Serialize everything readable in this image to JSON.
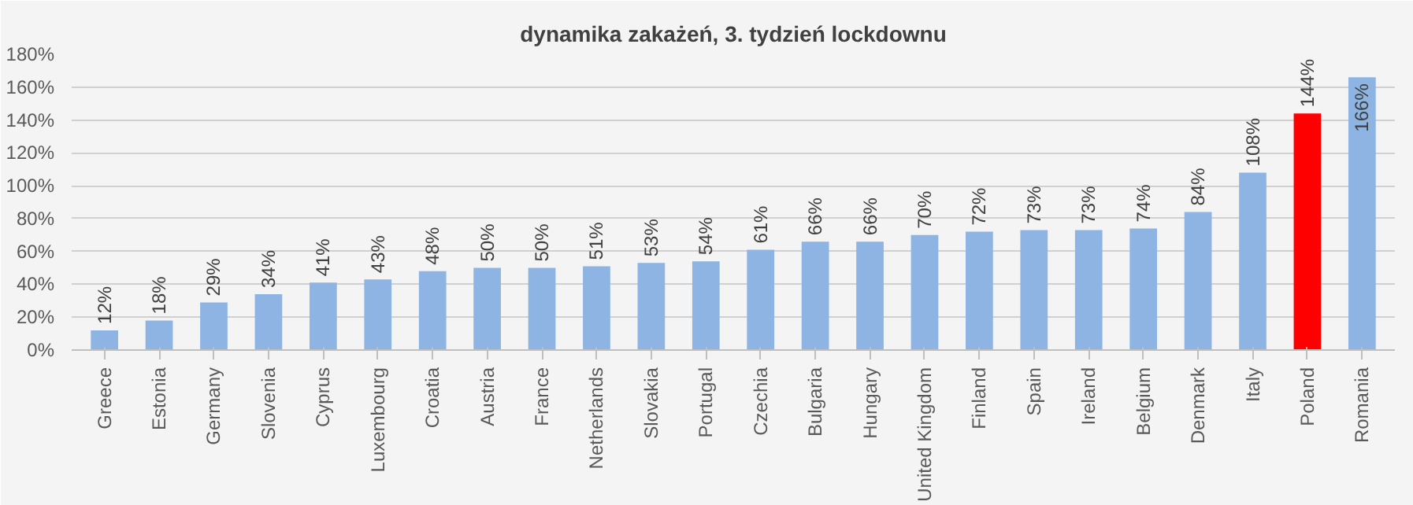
{
  "chart_data": {
    "type": "bar",
    "title": "dynamika zakażeń, 3. tydzień lockdownu",
    "categories": [
      "Greece",
      "Estonia",
      "Germany",
      "Slovenia",
      "Cyprus",
      "Luxembourg",
      "Croatia",
      "Austria",
      "France",
      "Netherlands",
      "Slovakia",
      "Portugal",
      "Czechia",
      "Bulgaria",
      "Hungary",
      "United Kingdom",
      "Finland",
      "Spain",
      "Ireland",
      "Belgium",
      "Denmark",
      "Italy",
      "Poland",
      "Romania"
    ],
    "values": [
      12,
      18,
      29,
      34,
      41,
      43,
      48,
      50,
      50,
      51,
      53,
      54,
      61,
      66,
      66,
      70,
      72,
      73,
      73,
      74,
      84,
      108,
      144,
      166
    ],
    "value_labels": [
      "12%",
      "18%",
      "29%",
      "34%",
      "41%",
      "43%",
      "48%",
      "50%",
      "50%",
      "51%",
      "53%",
      "54%",
      "61%",
      "66%",
      "66%",
      "70%",
      "72%",
      "73%",
      "73%",
      "74%",
      "84%",
      "108%",
      "144%",
      "166%"
    ],
    "colors": [
      "#8db4e2",
      "#8db4e2",
      "#8db4e2",
      "#8db4e2",
      "#8db4e2",
      "#8db4e2",
      "#8db4e2",
      "#8db4e2",
      "#8db4e2",
      "#8db4e2",
      "#8db4e2",
      "#8db4e2",
      "#8db4e2",
      "#8db4e2",
      "#8db4e2",
      "#8db4e2",
      "#8db4e2",
      "#8db4e2",
      "#8db4e2",
      "#8db4e2",
      "#8db4e2",
      "#8db4e2",
      "#ff0000",
      "#8db4e2"
    ],
    "ylim": [
      0,
      180
    ],
    "yticks": [
      {
        "value": 0,
        "label": "0%"
      },
      {
        "value": 20,
        "label": "20%"
      },
      {
        "value": 40,
        "label": "40%"
      },
      {
        "value": 60,
        "label": "60%"
      },
      {
        "value": 80,
        "label": "80%"
      },
      {
        "value": 100,
        "label": "100%"
      },
      {
        "value": 120,
        "label": "120%"
      },
      {
        "value": 140,
        "label": "140%"
      },
      {
        "value": 160,
        "label": "160%"
      },
      {
        "value": 180,
        "label": "180%"
      }
    ],
    "grid": "y"
  }
}
